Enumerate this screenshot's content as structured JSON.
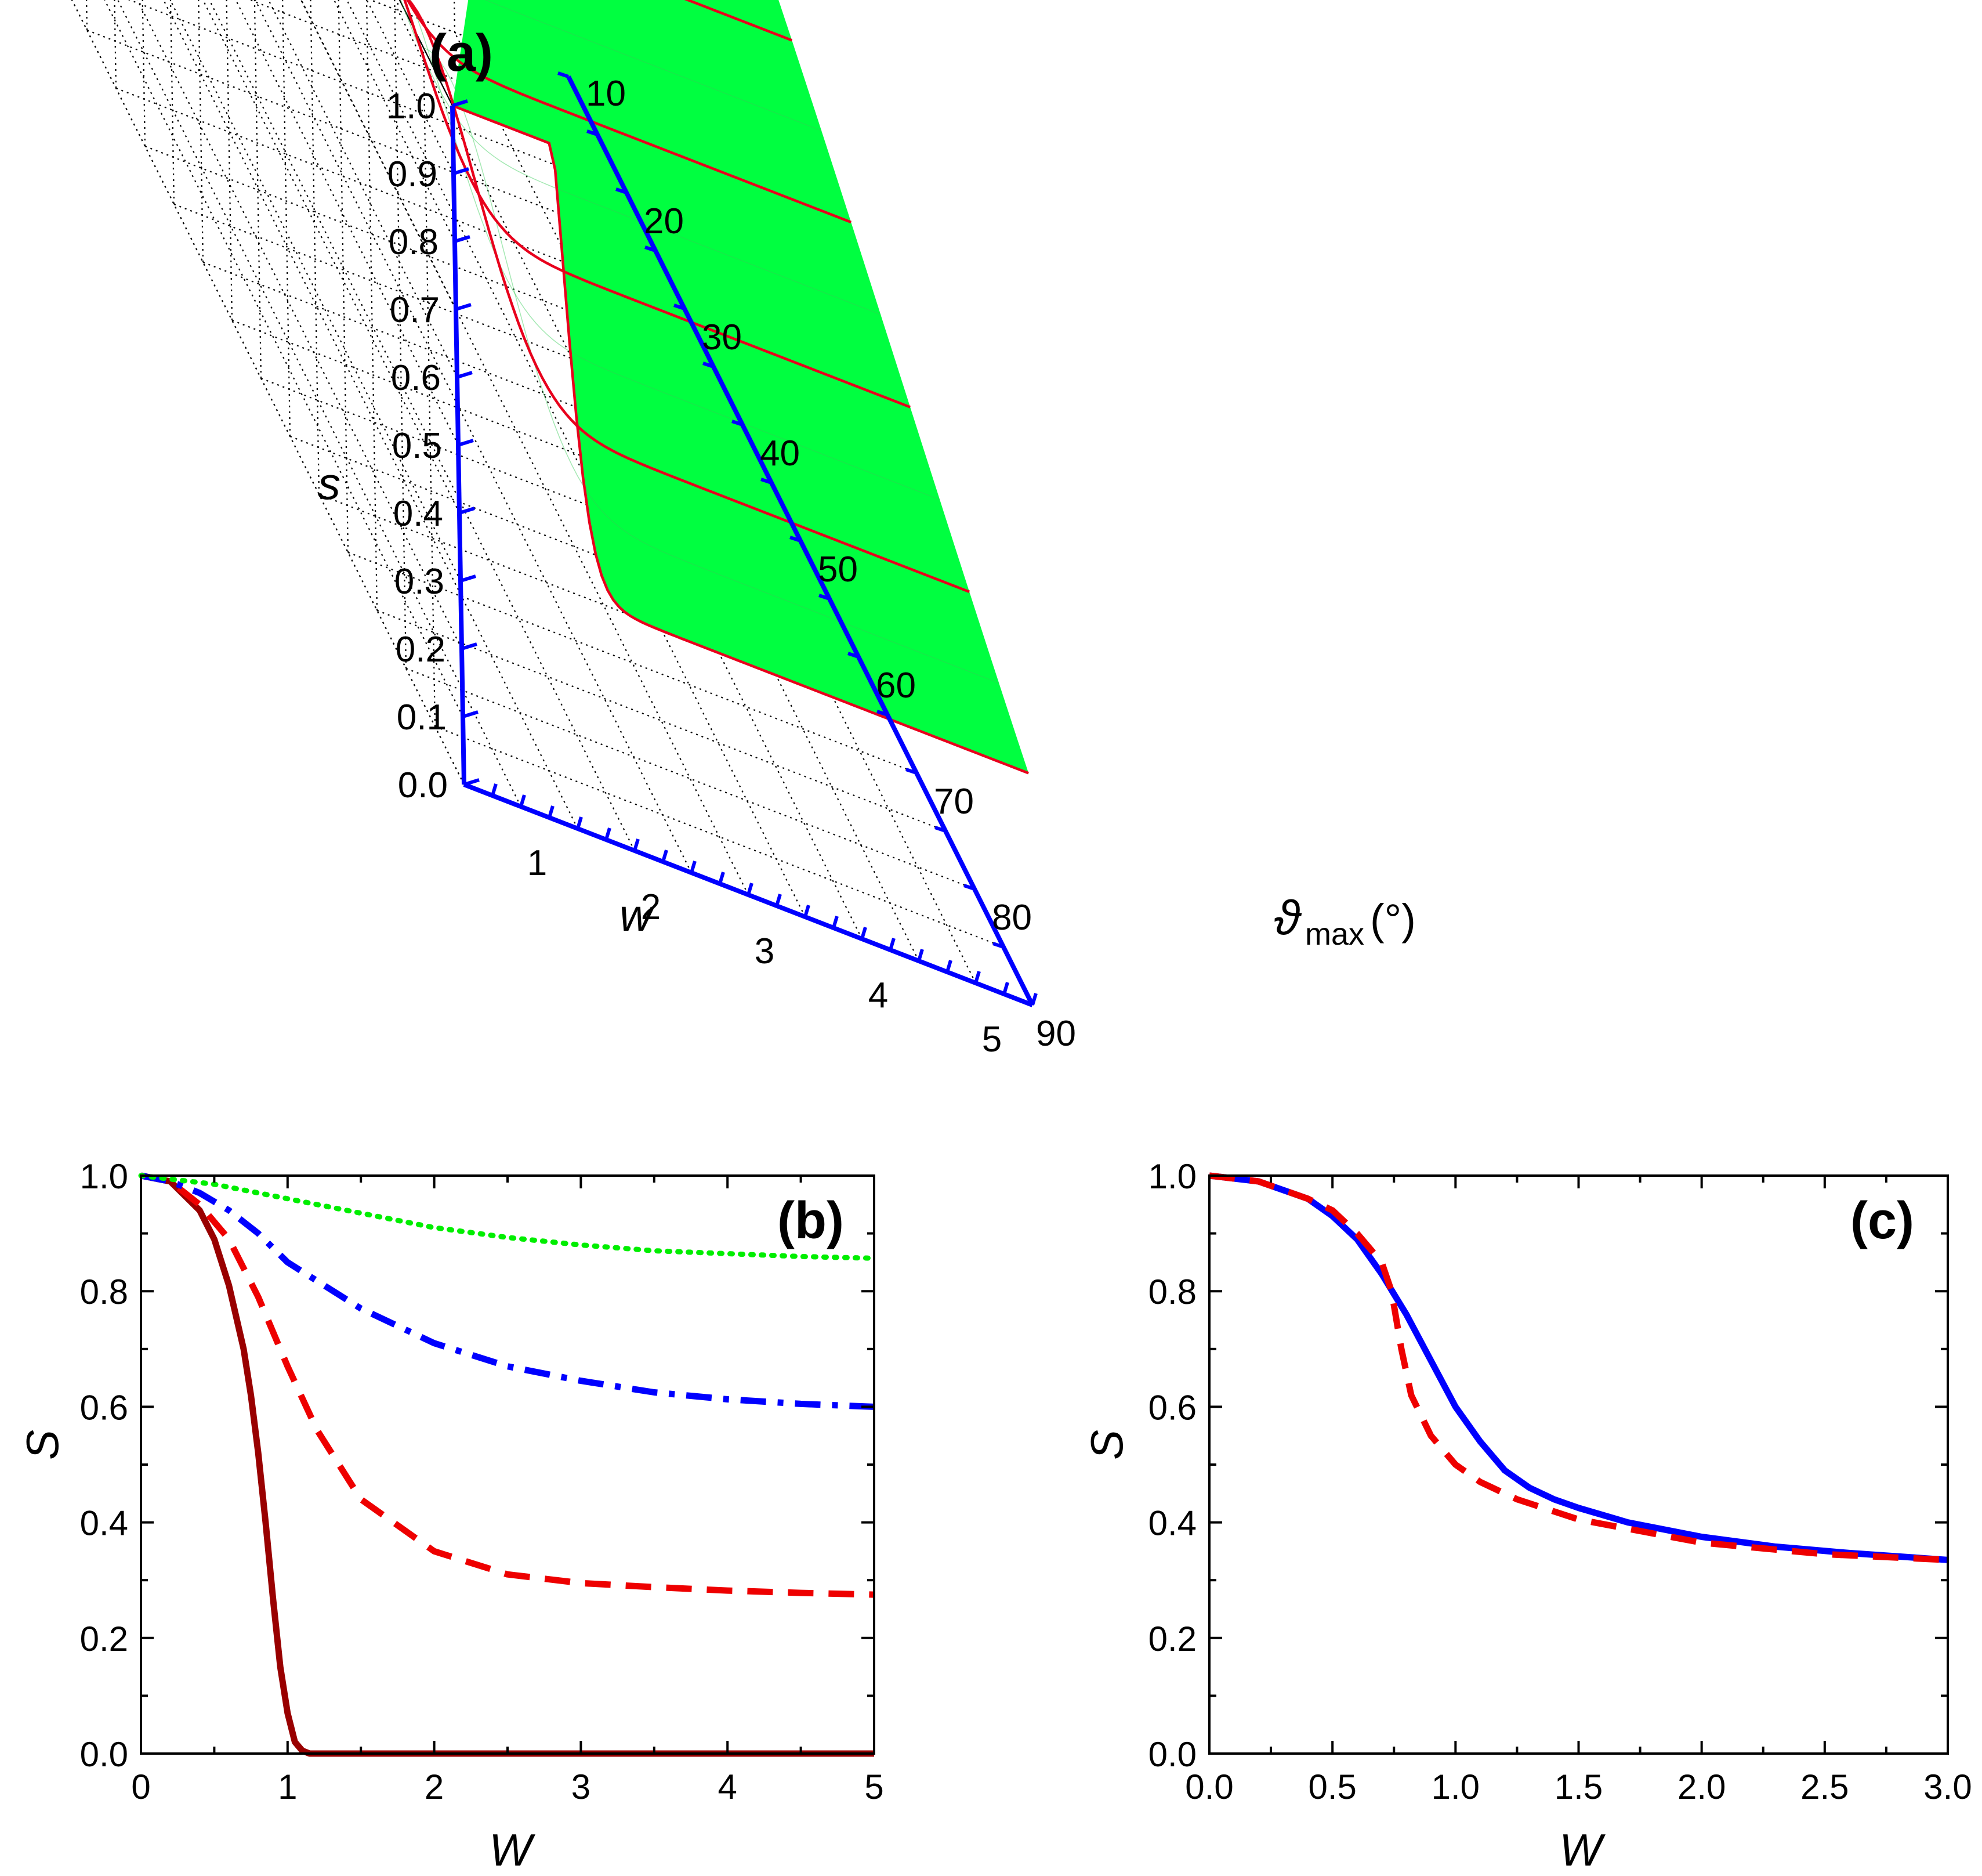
{
  "colors": {
    "surface": "#00ff40",
    "contour": "#e8001c",
    "axis3d": "#0000ff",
    "darkred": "#990000",
    "red": "#ee0000",
    "blue": "#0000ff",
    "green": "#00ee00"
  },
  "chart_data": [
    {
      "panel": "(a)",
      "type": "surface",
      "zlabel": "s",
      "xlabel": "w",
      "ylabel_symbol": "ϑ",
      "ylabel_sub": "max",
      "ylabel_unit": "(°)",
      "z_ticks": [
        "0.0",
        "0.1",
        "0.2",
        "0.3",
        "0.4",
        "0.5",
        "0.6",
        "0.7",
        "0.8",
        "0.9",
        "1.0"
      ],
      "w_ticks": [
        "1",
        "2",
        "3",
        "4",
        "5"
      ],
      "theta_ticks": [
        "10",
        "20",
        "30",
        "40",
        "50",
        "60",
        "70",
        "80",
        "90"
      ],
      "w_range": [
        0,
        5
      ],
      "theta_range_deg": [
        10,
        90
      ],
      "z_range": [
        0,
        1
      ],
      "contour_theta_deg": [
        10,
        20,
        30,
        40,
        50,
        60,
        70,
        80,
        90
      ],
      "s_at_w5": [
        0.99,
        0.97,
        0.93,
        0.86,
        0.77,
        0.66,
        0.52,
        0.37,
        0.0
      ]
    },
    {
      "panel": "(b)",
      "type": "line",
      "xlabel": "W",
      "ylabel": "S",
      "xlim": [
        0,
        5
      ],
      "ylim": [
        0,
        1
      ],
      "xticks": [
        "0",
        "1",
        "2",
        "3",
        "4",
        "5"
      ],
      "yticks": [
        "0.0",
        "0.2",
        "0.4",
        "0.6",
        "0.8",
        "1.0"
      ],
      "series": [
        {
          "name": "solid",
          "style": "solid",
          "color": "#990000",
          "x": [
            0,
            0.2,
            0.4,
            0.5,
            0.6,
            0.7,
            0.75,
            0.8,
            0.85,
            0.9,
            0.95,
            1.0,
            1.05,
            1.1,
            1.15,
            1.2,
            2,
            3,
            4,
            5
          ],
          "y": [
            1.0,
            0.99,
            0.94,
            0.89,
            0.81,
            0.7,
            0.62,
            0.52,
            0.4,
            0.27,
            0.15,
            0.07,
            0.02,
            0.005,
            0.0,
            0.0,
            0.0,
            0.0,
            0.0,
            0.0
          ]
        },
        {
          "name": "dashed",
          "style": "dashed",
          "color": "#ee0000",
          "x": [
            0,
            0.2,
            0.4,
            0.6,
            0.8,
            1.0,
            1.2,
            1.5,
            2.0,
            2.5,
            3.0,
            3.5,
            4.0,
            4.5,
            5.0
          ],
          "y": [
            1.0,
            0.99,
            0.95,
            0.89,
            0.79,
            0.67,
            0.56,
            0.44,
            0.35,
            0.31,
            0.295,
            0.288,
            0.282,
            0.278,
            0.275
          ]
        },
        {
          "name": "dash-dot",
          "style": "dashdot",
          "color": "#0000ff",
          "x": [
            0,
            0.2,
            0.4,
            0.6,
            0.8,
            1.0,
            1.5,
            2.0,
            2.5,
            3.0,
            3.5,
            4.0,
            4.5,
            5.0
          ],
          "y": [
            1.0,
            0.99,
            0.97,
            0.94,
            0.9,
            0.85,
            0.77,
            0.71,
            0.67,
            0.645,
            0.625,
            0.613,
            0.605,
            0.6
          ]
        },
        {
          "name": "dotted",
          "style": "dotted",
          "color": "#00ee00",
          "x": [
            0,
            0.5,
            1.0,
            1.5,
            2.0,
            2.5,
            3.0,
            3.5,
            4.0,
            4.5,
            5.0
          ],
          "y": [
            1.0,
            0.985,
            0.96,
            0.935,
            0.91,
            0.893,
            0.88,
            0.87,
            0.865,
            0.86,
            0.857
          ]
        }
      ]
    },
    {
      "panel": "(c)",
      "type": "line",
      "xlabel": "W",
      "ylabel": "S",
      "xlim": [
        0,
        3
      ],
      "ylim": [
        0,
        1
      ],
      "xticks": [
        "0.0",
        "0.5",
        "1.0",
        "1.5",
        "2.0",
        "2.5",
        "3.0"
      ],
      "yticks": [
        "0.0",
        "0.2",
        "0.4",
        "0.6",
        "0.8",
        "1.0"
      ],
      "series": [
        {
          "name": "solid",
          "style": "solid",
          "color": "#0000ff",
          "x": [
            0,
            0.2,
            0.4,
            0.5,
            0.6,
            0.7,
            0.8,
            0.9,
            1.0,
            1.1,
            1.2,
            1.3,
            1.4,
            1.5,
            1.7,
            2.0,
            2.3,
            2.6,
            3.0
          ],
          "y": [
            1.0,
            0.99,
            0.96,
            0.93,
            0.89,
            0.83,
            0.76,
            0.68,
            0.6,
            0.54,
            0.49,
            0.46,
            0.44,
            0.425,
            0.4,
            0.375,
            0.358,
            0.347,
            0.335
          ]
        },
        {
          "name": "dashed",
          "style": "dashed",
          "color": "#ee0000",
          "x": [
            0,
            0.2,
            0.4,
            0.5,
            0.6,
            0.7,
            0.74,
            0.78,
            0.82,
            0.9,
            1.0,
            1.1,
            1.25,
            1.5,
            1.75,
            2.0,
            2.5,
            3.0
          ],
          "y": [
            1.0,
            0.99,
            0.96,
            0.94,
            0.9,
            0.85,
            0.8,
            0.7,
            0.62,
            0.55,
            0.5,
            0.47,
            0.44,
            0.405,
            0.385,
            0.365,
            0.345,
            0.335
          ]
        }
      ]
    }
  ]
}
